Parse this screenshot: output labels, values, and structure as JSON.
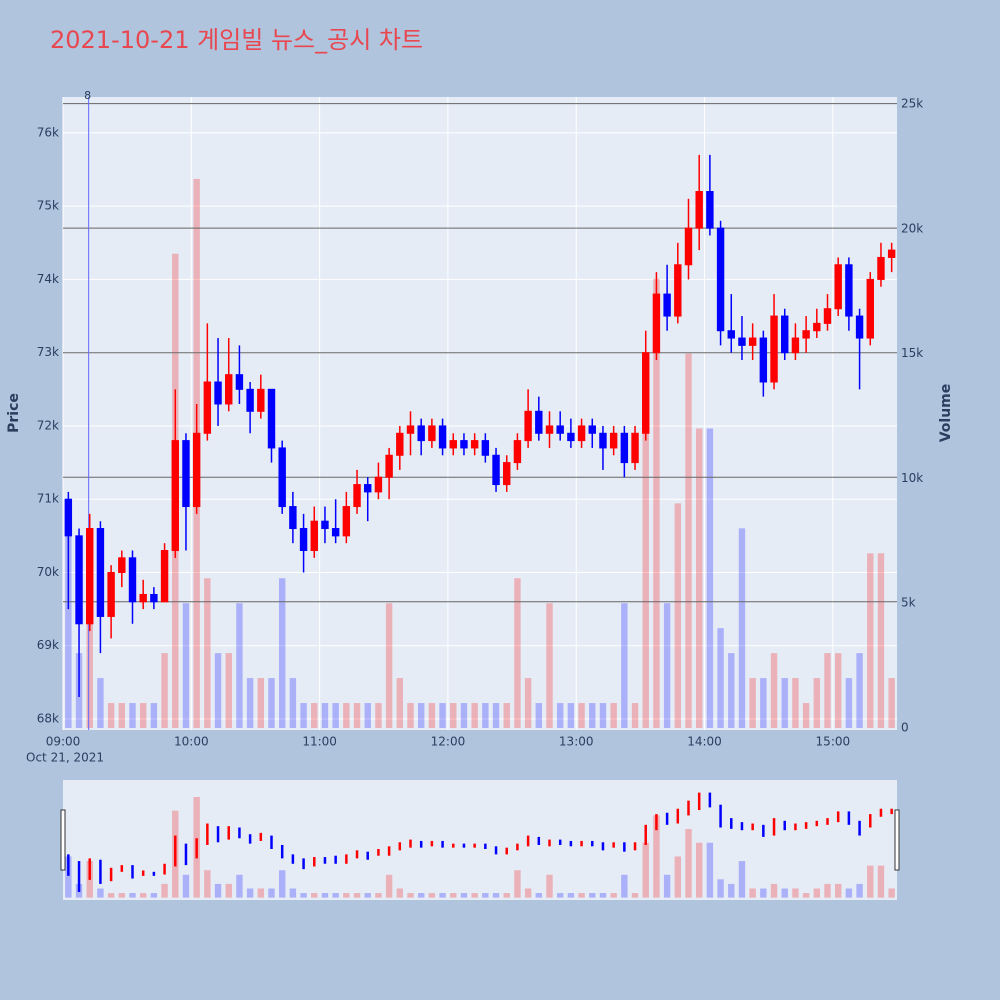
{
  "chart_data": {
    "type": "candlestick",
    "title": "2021-10-21 게임빌 뉴스_공시 차트",
    "x_date_label": "Oct 21, 2021",
    "y_title": "Price",
    "y2_title": "Volume",
    "up_color": "#ff0000",
    "down_color": "#0000ff",
    "x": [
      "09:00",
      "09:05",
      "09:10",
      "09:15",
      "09:20",
      "09:25",
      "09:30",
      "09:35",
      "09:40",
      "09:45",
      "09:50",
      "09:55",
      "10:00",
      "10:05",
      "10:10",
      "10:15",
      "10:20",
      "10:25",
      "10:30",
      "10:35",
      "10:40",
      "10:45",
      "10:50",
      "10:55",
      "11:00",
      "11:05",
      "11:10",
      "11:15",
      "11:20",
      "11:25",
      "11:30",
      "11:35",
      "11:40",
      "11:45",
      "11:50",
      "11:55",
      "12:00",
      "12:05",
      "12:10",
      "12:15",
      "12:20",
      "12:25",
      "12:30",
      "12:35",
      "12:40",
      "12:45",
      "12:50",
      "12:55",
      "13:00",
      "13:05",
      "13:10",
      "13:15",
      "13:20",
      "13:25",
      "13:30",
      "13:35",
      "13:40",
      "13:45",
      "13:50",
      "13:55",
      "14:00",
      "14:05",
      "14:10",
      "14:15",
      "14:20",
      "14:25",
      "14:30",
      "14:35",
      "14:40",
      "14:45",
      "14:50",
      "14:55",
      "15:00",
      "15:05",
      "15:10",
      "15:15",
      "15:20",
      "15:25"
    ],
    "open": [
      71000,
      70500,
      69300,
      70600,
      69400,
      70000,
      70200,
      69600,
      69700,
      69600,
      70300,
      71800,
      70900,
      71900,
      72600,
      72300,
      72700,
      72500,
      72200,
      72500,
      71700,
      70900,
      70600,
      70300,
      70700,
      70600,
      70500,
      70900,
      71200,
      71100,
      71300,
      71600,
      71900,
      72000,
      71800,
      72000,
      71700,
      71800,
      71700,
      71800,
      71600,
      71200,
      71500,
      71800,
      72200,
      71900,
      72000,
      71900,
      71800,
      72000,
      71900,
      71700,
      71900,
      71500,
      71900,
      73000,
      73800,
      73500,
      74200,
      74700,
      75200,
      74700,
      73300,
      73200,
      73100,
      73200,
      72600,
      73500,
      73000,
      73200,
      73300,
      73400,
      73600,
      74200,
      73500,
      73200,
      74000,
      74300
    ],
    "high": [
      71100,
      70600,
      70800,
      70700,
      70100,
      70300,
      70300,
      69900,
      69800,
      70400,
      72500,
      71900,
      72300,
      73400,
      73200,
      73200,
      73100,
      72600,
      72700,
      72500,
      71800,
      71100,
      70800,
      70900,
      70900,
      71000,
      71100,
      71400,
      71300,
      71500,
      71700,
      72000,
      72200,
      72100,
      72100,
      72100,
      71900,
      71900,
      71900,
      71900,
      71700,
      71600,
      71900,
      72500,
      72400,
      72200,
      72200,
      72100,
      72100,
      72100,
      72000,
      72000,
      72000,
      72000,
      73300,
      74100,
      74200,
      74500,
      75100,
      75700,
      75700,
      74800,
      73800,
      73500,
      73400,
      73300,
      73800,
      73600,
      73400,
      73500,
      73600,
      73800,
      74300,
      74300,
      73600,
      74100,
      74500,
      74500
    ],
    "low": [
      69500,
      68300,
      69200,
      68900,
      69100,
      69800,
      69300,
      69500,
      69500,
      69600,
      70200,
      70300,
      70800,
      71800,
      72000,
      72200,
      72300,
      71900,
      72100,
      71500,
      70800,
      70400,
      70000,
      70200,
      70400,
      70400,
      70400,
      70800,
      70700,
      71000,
      71000,
      71400,
      71600,
      71600,
      71700,
      71600,
      71600,
      71600,
      71600,
      71500,
      71100,
      71100,
      71400,
      71700,
      71800,
      71700,
      71800,
      71700,
      71700,
      71700,
      71400,
      71600,
      71300,
      71400,
      71800,
      72900,
      73300,
      73400,
      74000,
      74400,
      74600,
      73100,
      73000,
      72900,
      72900,
      72400,
      72500,
      72900,
      72900,
      73000,
      73200,
      73300,
      73500,
      73300,
      72500,
      73100,
      73900,
      74100
    ],
    "close": [
      70500,
      69300,
      70600,
      69400,
      70000,
      70200,
      69600,
      69700,
      69600,
      70300,
      71800,
      70900,
      71900,
      72600,
      72300,
      72700,
      72500,
      72200,
      72500,
      71700,
      70900,
      70600,
      70300,
      70700,
      70600,
      70500,
      70900,
      71200,
      71100,
      71300,
      71600,
      71900,
      72000,
      71800,
      72000,
      71700,
      71800,
      71700,
      71800,
      71600,
      71200,
      71500,
      71800,
      72200,
      71900,
      72000,
      71900,
      71800,
      72000,
      71900,
      71700,
      71900,
      71500,
      71900,
      73000,
      73800,
      73500,
      74200,
      74700,
      75200,
      74700,
      73300,
      73200,
      73100,
      73200,
      72600,
      73500,
      73000,
      73200,
      73300,
      73400,
      73600,
      74200,
      73500,
      73200,
      74000,
      74300,
      74400
    ],
    "volume": [
      9000,
      3000,
      8000,
      2000,
      1000,
      1000,
      1000,
      1000,
      1000,
      3000,
      19000,
      5000,
      22000,
      6000,
      3000,
      3000,
      5000,
      2000,
      2000,
      2000,
      6000,
      2000,
      1000,
      1000,
      1000,
      1000,
      1000,
      1000,
      1000,
      1000,
      5000,
      2000,
      1000,
      1000,
      1000,
      1000,
      1000,
      1000,
      1000,
      1000,
      1000,
      1000,
      6000,
      2000,
      1000,
      5000,
      1000,
      1000,
      1000,
      1000,
      1000,
      1000,
      5000,
      1000,
      12000,
      18000,
      5000,
      9000,
      15000,
      12000,
      12000,
      4000,
      3000,
      8000,
      2000,
      2000,
      3000,
      2000,
      2000,
      1000,
      2000,
      3000,
      3000,
      2000,
      3000,
      7000,
      7000,
      2000
    ],
    "xlim": [
      "09:00",
      "15:30"
    ],
    "xticks": [
      "09:00",
      "10:00",
      "11:00",
      "12:00",
      "13:00",
      "14:00",
      "15:00"
    ],
    "ylim": [
      67850,
      76490
    ],
    "yticks": [
      {
        "value": 68000,
        "label": "68k"
      },
      {
        "value": 69000,
        "label": "69k"
      },
      {
        "value": 70000,
        "label": "70k"
      },
      {
        "value": 71000,
        "label": "71k"
      },
      {
        "value": 72000,
        "label": "72k"
      },
      {
        "value": 73000,
        "label": "73k"
      },
      {
        "value": 74000,
        "label": "74k"
      },
      {
        "value": 75000,
        "label": "75k"
      },
      {
        "value": 76000,
        "label": "76k"
      }
    ],
    "y2lim": [
      -80,
      25280
    ],
    "y2ticks": [
      0,
      {
        "value": 5000,
        "label": "5k"
      },
      {
        "value": 10000,
        "label": "10k"
      },
      {
        "value": 15000,
        "label": "15k"
      },
      {
        "value": 20000,
        "label": "20k"
      },
      {
        "value": 25000,
        "label": "25k"
      }
    ],
    "hlines": [
      69600,
      71300,
      73000,
      74700,
      76400
    ],
    "vline": {
      "x": "09:12",
      "text": "8"
    },
    "grid": true,
    "rangeslider": true
  }
}
